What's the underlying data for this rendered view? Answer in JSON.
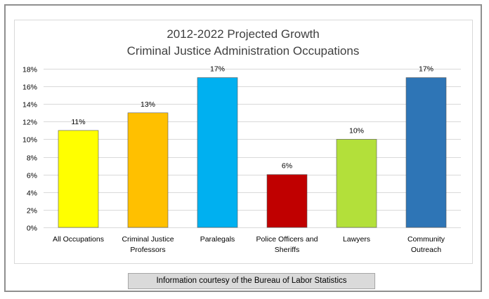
{
  "chart_data": {
    "type": "bar",
    "title": "2012-2022 Projected Growth",
    "subtitle": "Criminal Justice Administration Occupations",
    "categories": [
      [
        "All Occupations"
      ],
      [
        "Criminal Justice",
        "Professors"
      ],
      [
        "Paralegals"
      ],
      [
        "Police Officers and",
        "Sheriffs"
      ],
      [
        "Lawyers"
      ],
      [
        "Community",
        "Outreach"
      ]
    ],
    "values": [
      11,
      13,
      17,
      6,
      10,
      17
    ],
    "data_labels": [
      "11%",
      "13%",
      "17%",
      "6%",
      "10%",
      "17%"
    ],
    "colors": [
      "#ffff00",
      "#ffc000",
      "#00b0f0",
      "#c00000",
      "#b3e03a",
      "#2e75b6"
    ],
    "ylim": [
      0,
      18
    ],
    "yticks": [
      0,
      2,
      4,
      6,
      8,
      10,
      12,
      14,
      16,
      18
    ],
    "ytick_suffix": "%",
    "grid": true,
    "legend": "none"
  },
  "footer": {
    "note": "Information courtesy of the Bureau of Labor Statistics"
  }
}
